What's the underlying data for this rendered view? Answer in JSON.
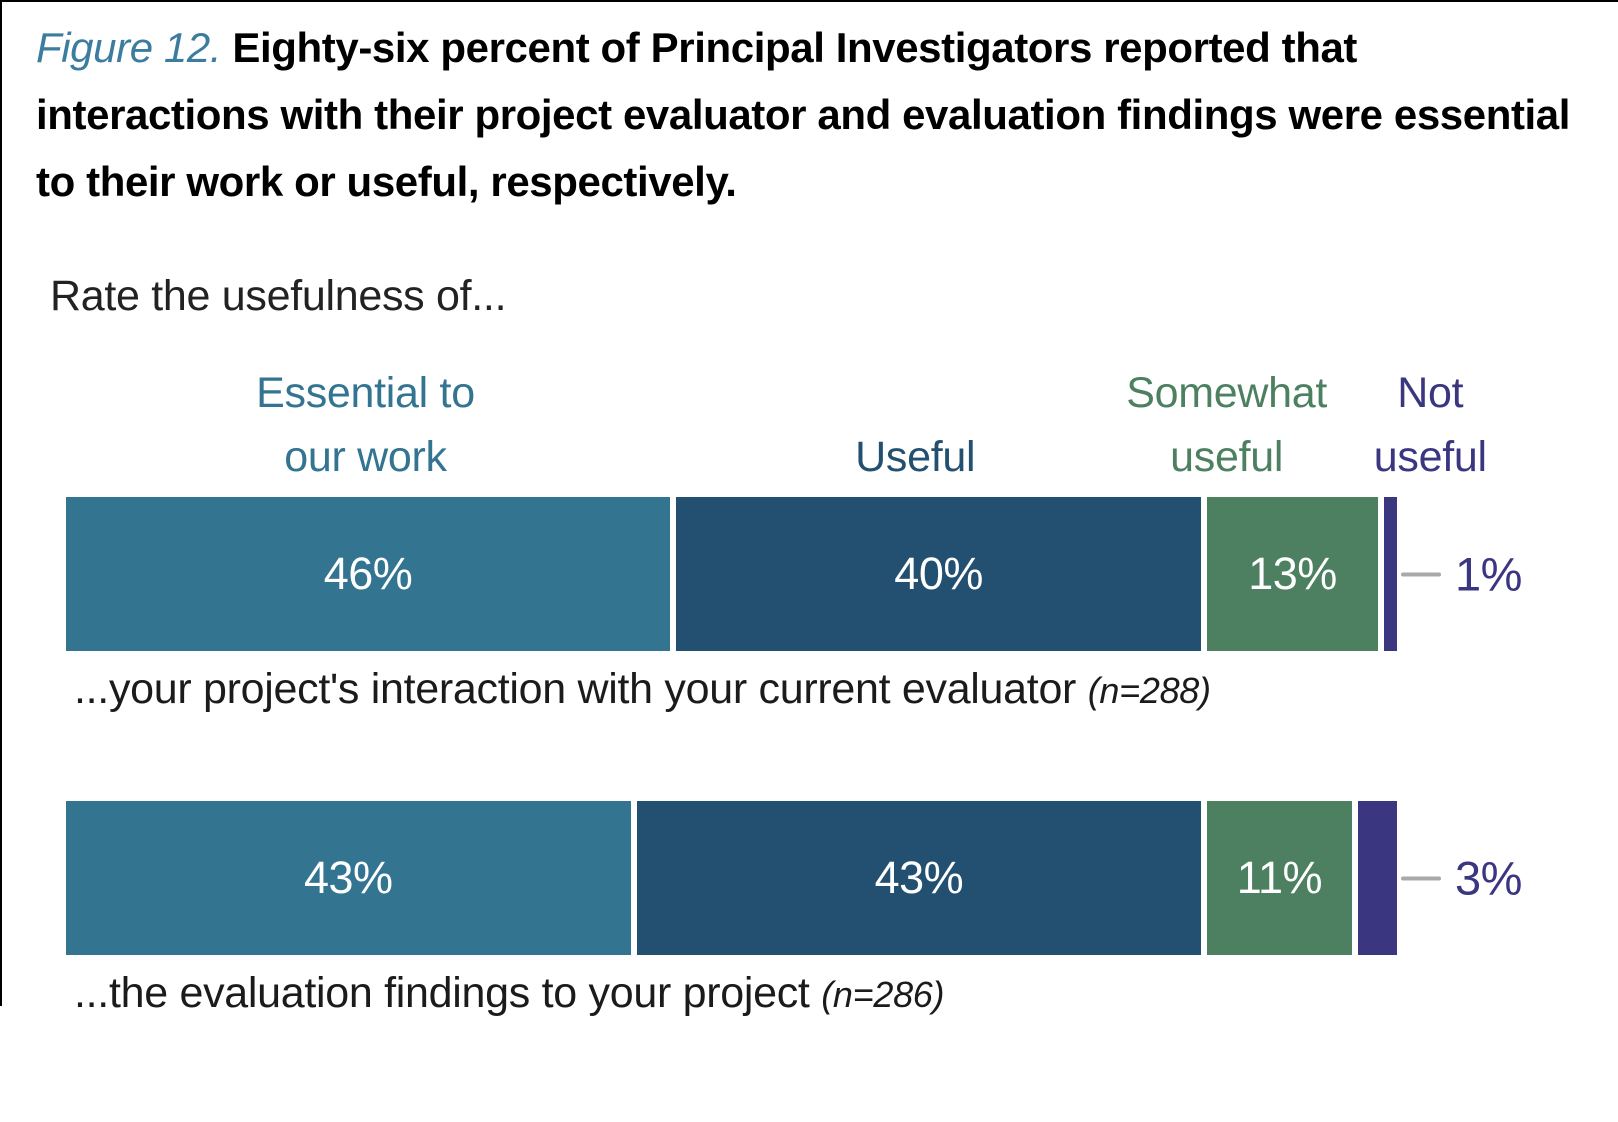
{
  "figure_caption": {
    "label": "Figure 12.",
    "text": "Eighty-six percent of Principal Investigators reported that interactions with their project evaluator and evaluation findings were essential to their work or useful, respectively."
  },
  "question": "Rate the usefulness of...",
  "colors": {
    "figure_label": "#3C7C9E",
    "caption_text": "#000000",
    "body_text": "#1B1B1B",
    "callout_line": "#A9A9A9",
    "callout_text": "#3A3680",
    "frame_border": "#000000",
    "segment_label_text": "#FFFFFF"
  },
  "chart_data": {
    "type": "bar",
    "subtype": "horizontal-stacked-100-percent",
    "title": "Rate the usefulness of...",
    "xlabel": "",
    "ylabel": "",
    "xlim": [
      0,
      100
    ],
    "grid": false,
    "legend_position": "top",
    "categories": [
      "Essential to our work",
      "Useful",
      "Somewhat useful",
      "Not useful"
    ],
    "series_colors": [
      "#337491",
      "#235070",
      "#4D8060",
      "#3A3680"
    ],
    "legend": [
      {
        "lines": [
          "Essential to",
          "our work"
        ],
        "color": "#337491",
        "center_pct": 22.5
      },
      {
        "lines": [
          "Useful"
        ],
        "color": "#235070",
        "center_pct": 63.8
      },
      {
        "lines": [
          "Somewhat",
          "useful"
        ],
        "color": "#4D8060",
        "center_pct": 87.2
      },
      {
        "lines": [
          "Not",
          "useful"
        ],
        "color": "#3A3680",
        "center_pct": 102.5
      }
    ],
    "rows": [
      {
        "label": "...your project's interaction with your current evaluator",
        "n_label": "(n=288)",
        "values": [
          46,
          40,
          13,
          1
        ],
        "inside_labels": [
          "46%",
          "40%",
          "13%",
          ""
        ],
        "callout_label": "1%"
      },
      {
        "label": "...the evaluation findings to your project",
        "n_label": "(n=286)",
        "values": [
          43,
          43,
          11,
          3
        ],
        "inside_labels": [
          "43%",
          "43%",
          "11%",
          ""
        ],
        "callout_label": "3%"
      }
    ]
  }
}
